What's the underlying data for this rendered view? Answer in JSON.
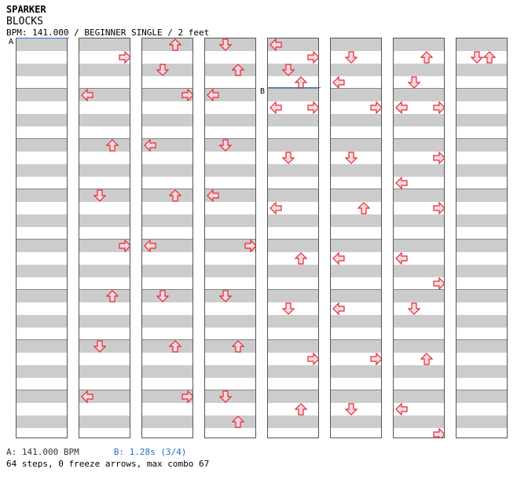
{
  "header": {
    "title": "SPARKER",
    "subtitle": "BLOCKS",
    "bpm_line": "BPM: 141.000 / BEGINNER SINGLE / 2 feet"
  },
  "markers": {
    "a": "A",
    "b": "B"
  },
  "footer": {
    "a_text": "A: 141.000 BPM",
    "b_text": "B: 1.28s (3/4)",
    "stats": "64 steps, 0 freeze arrows, max combo 67"
  },
  "colors": {
    "arrow_fill": "#ffdada",
    "arrow_stroke": "#e0283c",
    "bpm_marker": "#3a6fd8"
  },
  "chart_notes": [
    [
      {
        "m": 0,
        "b": 0,
        "d": ""
      }
    ],
    [
      {
        "m": 0,
        "b": 1,
        "d": "R"
      },
      {
        "m": 1,
        "b": 0,
        "d": "L"
      },
      {
        "m": 2,
        "b": 0,
        "d": "U"
      },
      {
        "m": 3,
        "b": 0,
        "d": "D"
      },
      {
        "m": 4,
        "b": 0,
        "d": "R"
      },
      {
        "m": 5,
        "b": 0,
        "d": "U"
      },
      {
        "m": 6,
        "b": 0,
        "d": "D"
      },
      {
        "m": 7,
        "b": 0,
        "d": "L"
      }
    ],
    [
      {
        "m": 0,
        "b": 0,
        "d": "U"
      },
      {
        "m": 0,
        "b": 2,
        "d": "D"
      },
      {
        "m": 1,
        "b": 0,
        "d": "R"
      },
      {
        "m": 2,
        "b": 0,
        "d": "L"
      },
      {
        "m": 3,
        "b": 0,
        "d": "U"
      },
      {
        "m": 4,
        "b": 0,
        "d": "L"
      },
      {
        "m": 5,
        "b": 0,
        "d": "D"
      },
      {
        "m": 6,
        "b": 0,
        "d": "U"
      },
      {
        "m": 7,
        "b": 0,
        "d": "R"
      }
    ],
    [
      {
        "m": 0,
        "b": 0,
        "d": "D"
      },
      {
        "m": 0,
        "b": 2,
        "d": "U"
      },
      {
        "m": 1,
        "b": 0,
        "d": "L"
      },
      {
        "m": 2,
        "b": 0,
        "d": "D"
      },
      {
        "m": 3,
        "b": 0,
        "d": "L"
      },
      {
        "m": 4,
        "b": 0,
        "d": "R"
      },
      {
        "m": 5,
        "b": 0,
        "d": "D"
      },
      {
        "m": 6,
        "b": 0,
        "d": "U"
      },
      {
        "m": 7,
        "b": 0,
        "d": "D"
      },
      {
        "m": 7,
        "b": 2,
        "d": "U"
      }
    ],
    [
      {
        "m": 0,
        "b": 0,
        "d": "L"
      },
      {
        "m": 0,
        "b": 1,
        "d": "R"
      },
      {
        "m": 0,
        "b": 2,
        "d": "D"
      },
      {
        "m": 0,
        "b": 3,
        "d": "U"
      },
      {
        "m": 1,
        "b": 1,
        "d": "L"
      },
      {
        "m": 1,
        "b": 1,
        "d": "R"
      },
      {
        "m": 2,
        "b": 1,
        "d": "D"
      },
      {
        "m": 3,
        "b": 1,
        "d": "L"
      },
      {
        "m": 4,
        "b": 1,
        "d": "U"
      },
      {
        "m": 5,
        "b": 1,
        "d": "D"
      },
      {
        "m": 6,
        "b": 1,
        "d": "R"
      },
      {
        "m": 7,
        "b": 1,
        "d": "U"
      }
    ],
    [
      {
        "m": 0,
        "b": 1,
        "d": "D"
      },
      {
        "m": 0,
        "b": 3,
        "d": "L"
      },
      {
        "m": 1,
        "b": 1,
        "d": "R"
      },
      {
        "m": 2,
        "b": 1,
        "d": "D"
      },
      {
        "m": 3,
        "b": 1,
        "d": "U"
      },
      {
        "m": 4,
        "b": 1,
        "d": "L"
      },
      {
        "m": 5,
        "b": 1,
        "d": "L"
      },
      {
        "m": 6,
        "b": 1,
        "d": "R"
      },
      {
        "m": 7,
        "b": 1,
        "d": "D"
      }
    ],
    [
      {
        "m": 0,
        "b": 1,
        "d": "U"
      },
      {
        "m": 0,
        "b": 3,
        "d": "D"
      },
      {
        "m": 1,
        "b": 1,
        "d": "L"
      },
      {
        "m": 1,
        "b": 1,
        "d": "R"
      },
      {
        "m": 2,
        "b": 1,
        "d": "R"
      },
      {
        "m": 2,
        "b": 3,
        "d": "L"
      },
      {
        "m": 3,
        "b": 1,
        "d": "R"
      },
      {
        "m": 4,
        "b": 1,
        "d": "L"
      },
      {
        "m": 4,
        "b": 3,
        "d": "R"
      },
      {
        "m": 5,
        "b": 1,
        "d": "D"
      },
      {
        "m": 6,
        "b": 1,
        "d": "U"
      },
      {
        "m": 7,
        "b": 1,
        "d": "L"
      },
      {
        "m": 7,
        "b": 3,
        "d": "R"
      }
    ],
    [
      {
        "m": 0,
        "b": 1,
        "d": "DU"
      }
    ]
  ]
}
